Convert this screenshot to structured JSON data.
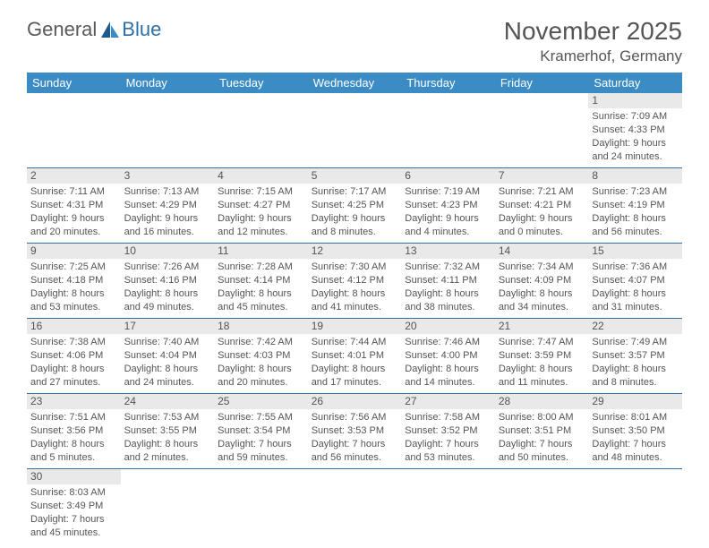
{
  "logo": {
    "text1": "General",
    "text2": "Blue"
  },
  "header": {
    "title": "November 2025",
    "location": "Kramerhof, Germany"
  },
  "weekdays": [
    "Sunday",
    "Monday",
    "Tuesday",
    "Wednesday",
    "Thursday",
    "Friday",
    "Saturday"
  ],
  "colors": {
    "headerBar": "#3b8bc5",
    "rowDivider": "#2f6fa8",
    "dayShade": "#e9e9e9",
    "text": "#555555"
  },
  "grid": [
    [
      {
        "n": "",
        "sr": "",
        "ss": "",
        "dl": ""
      },
      {
        "n": "",
        "sr": "",
        "ss": "",
        "dl": ""
      },
      {
        "n": "",
        "sr": "",
        "ss": "",
        "dl": ""
      },
      {
        "n": "",
        "sr": "",
        "ss": "",
        "dl": ""
      },
      {
        "n": "",
        "sr": "",
        "ss": "",
        "dl": ""
      },
      {
        "n": "",
        "sr": "",
        "ss": "",
        "dl": ""
      },
      {
        "n": "1",
        "sr": "Sunrise: 7:09 AM",
        "ss": "Sunset: 4:33 PM",
        "dl": "Daylight: 9 hours and 24 minutes."
      }
    ],
    [
      {
        "n": "2",
        "sr": "Sunrise: 7:11 AM",
        "ss": "Sunset: 4:31 PM",
        "dl": "Daylight: 9 hours and 20 minutes."
      },
      {
        "n": "3",
        "sr": "Sunrise: 7:13 AM",
        "ss": "Sunset: 4:29 PM",
        "dl": "Daylight: 9 hours and 16 minutes."
      },
      {
        "n": "4",
        "sr": "Sunrise: 7:15 AM",
        "ss": "Sunset: 4:27 PM",
        "dl": "Daylight: 9 hours and 12 minutes."
      },
      {
        "n": "5",
        "sr": "Sunrise: 7:17 AM",
        "ss": "Sunset: 4:25 PM",
        "dl": "Daylight: 9 hours and 8 minutes."
      },
      {
        "n": "6",
        "sr": "Sunrise: 7:19 AM",
        "ss": "Sunset: 4:23 PM",
        "dl": "Daylight: 9 hours and 4 minutes."
      },
      {
        "n": "7",
        "sr": "Sunrise: 7:21 AM",
        "ss": "Sunset: 4:21 PM",
        "dl": "Daylight: 9 hours and 0 minutes."
      },
      {
        "n": "8",
        "sr": "Sunrise: 7:23 AM",
        "ss": "Sunset: 4:19 PM",
        "dl": "Daylight: 8 hours and 56 minutes."
      }
    ],
    [
      {
        "n": "9",
        "sr": "Sunrise: 7:25 AM",
        "ss": "Sunset: 4:18 PM",
        "dl": "Daylight: 8 hours and 53 minutes."
      },
      {
        "n": "10",
        "sr": "Sunrise: 7:26 AM",
        "ss": "Sunset: 4:16 PM",
        "dl": "Daylight: 8 hours and 49 minutes."
      },
      {
        "n": "11",
        "sr": "Sunrise: 7:28 AM",
        "ss": "Sunset: 4:14 PM",
        "dl": "Daylight: 8 hours and 45 minutes."
      },
      {
        "n": "12",
        "sr": "Sunrise: 7:30 AM",
        "ss": "Sunset: 4:12 PM",
        "dl": "Daylight: 8 hours and 41 minutes."
      },
      {
        "n": "13",
        "sr": "Sunrise: 7:32 AM",
        "ss": "Sunset: 4:11 PM",
        "dl": "Daylight: 8 hours and 38 minutes."
      },
      {
        "n": "14",
        "sr": "Sunrise: 7:34 AM",
        "ss": "Sunset: 4:09 PM",
        "dl": "Daylight: 8 hours and 34 minutes."
      },
      {
        "n": "15",
        "sr": "Sunrise: 7:36 AM",
        "ss": "Sunset: 4:07 PM",
        "dl": "Daylight: 8 hours and 31 minutes."
      }
    ],
    [
      {
        "n": "16",
        "sr": "Sunrise: 7:38 AM",
        "ss": "Sunset: 4:06 PM",
        "dl": "Daylight: 8 hours and 27 minutes."
      },
      {
        "n": "17",
        "sr": "Sunrise: 7:40 AM",
        "ss": "Sunset: 4:04 PM",
        "dl": "Daylight: 8 hours and 24 minutes."
      },
      {
        "n": "18",
        "sr": "Sunrise: 7:42 AM",
        "ss": "Sunset: 4:03 PM",
        "dl": "Daylight: 8 hours and 20 minutes."
      },
      {
        "n": "19",
        "sr": "Sunrise: 7:44 AM",
        "ss": "Sunset: 4:01 PM",
        "dl": "Daylight: 8 hours and 17 minutes."
      },
      {
        "n": "20",
        "sr": "Sunrise: 7:46 AM",
        "ss": "Sunset: 4:00 PM",
        "dl": "Daylight: 8 hours and 14 minutes."
      },
      {
        "n": "21",
        "sr": "Sunrise: 7:47 AM",
        "ss": "Sunset: 3:59 PM",
        "dl": "Daylight: 8 hours and 11 minutes."
      },
      {
        "n": "22",
        "sr": "Sunrise: 7:49 AM",
        "ss": "Sunset: 3:57 PM",
        "dl": "Daylight: 8 hours and 8 minutes."
      }
    ],
    [
      {
        "n": "23",
        "sr": "Sunrise: 7:51 AM",
        "ss": "Sunset: 3:56 PM",
        "dl": "Daylight: 8 hours and 5 minutes."
      },
      {
        "n": "24",
        "sr": "Sunrise: 7:53 AM",
        "ss": "Sunset: 3:55 PM",
        "dl": "Daylight: 8 hours and 2 minutes."
      },
      {
        "n": "25",
        "sr": "Sunrise: 7:55 AM",
        "ss": "Sunset: 3:54 PM",
        "dl": "Daylight: 7 hours and 59 minutes."
      },
      {
        "n": "26",
        "sr": "Sunrise: 7:56 AM",
        "ss": "Sunset: 3:53 PM",
        "dl": "Daylight: 7 hours and 56 minutes."
      },
      {
        "n": "27",
        "sr": "Sunrise: 7:58 AM",
        "ss": "Sunset: 3:52 PM",
        "dl": "Daylight: 7 hours and 53 minutes."
      },
      {
        "n": "28",
        "sr": "Sunrise: 8:00 AM",
        "ss": "Sunset: 3:51 PM",
        "dl": "Daylight: 7 hours and 50 minutes."
      },
      {
        "n": "29",
        "sr": "Sunrise: 8:01 AM",
        "ss": "Sunset: 3:50 PM",
        "dl": "Daylight: 7 hours and 48 minutes."
      }
    ],
    [
      {
        "n": "30",
        "sr": "Sunrise: 8:03 AM",
        "ss": "Sunset: 3:49 PM",
        "dl": "Daylight: 7 hours and 45 minutes."
      },
      {
        "n": "",
        "sr": "",
        "ss": "",
        "dl": ""
      },
      {
        "n": "",
        "sr": "",
        "ss": "",
        "dl": ""
      },
      {
        "n": "",
        "sr": "",
        "ss": "",
        "dl": ""
      },
      {
        "n": "",
        "sr": "",
        "ss": "",
        "dl": ""
      },
      {
        "n": "",
        "sr": "",
        "ss": "",
        "dl": ""
      },
      {
        "n": "",
        "sr": "",
        "ss": "",
        "dl": ""
      }
    ]
  ]
}
